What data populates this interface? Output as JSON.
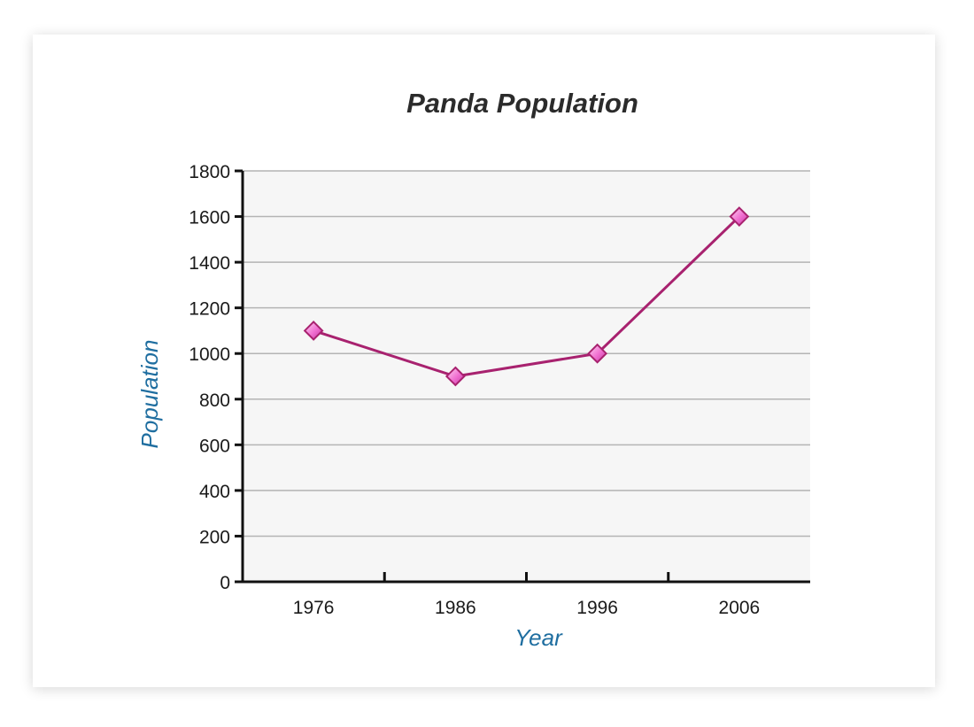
{
  "chart_data": {
    "type": "line",
    "title": "Panda Population",
    "xlabel": "Year",
    "ylabel": "Population",
    "categories": [
      "1976",
      "1986",
      "1996",
      "2006"
    ],
    "series": [
      {
        "values": [
          1100,
          900,
          1000,
          1600
        ]
      }
    ],
    "ylim": [
      0,
      1800
    ],
    "yticks": [
      0,
      200,
      400,
      600,
      800,
      1000,
      1200,
      1400,
      1600,
      1800
    ],
    "grid": true,
    "line_color": "#a8226f",
    "marker_color": "#f06ed0",
    "axis_label_color": "#1f6ea0"
  }
}
